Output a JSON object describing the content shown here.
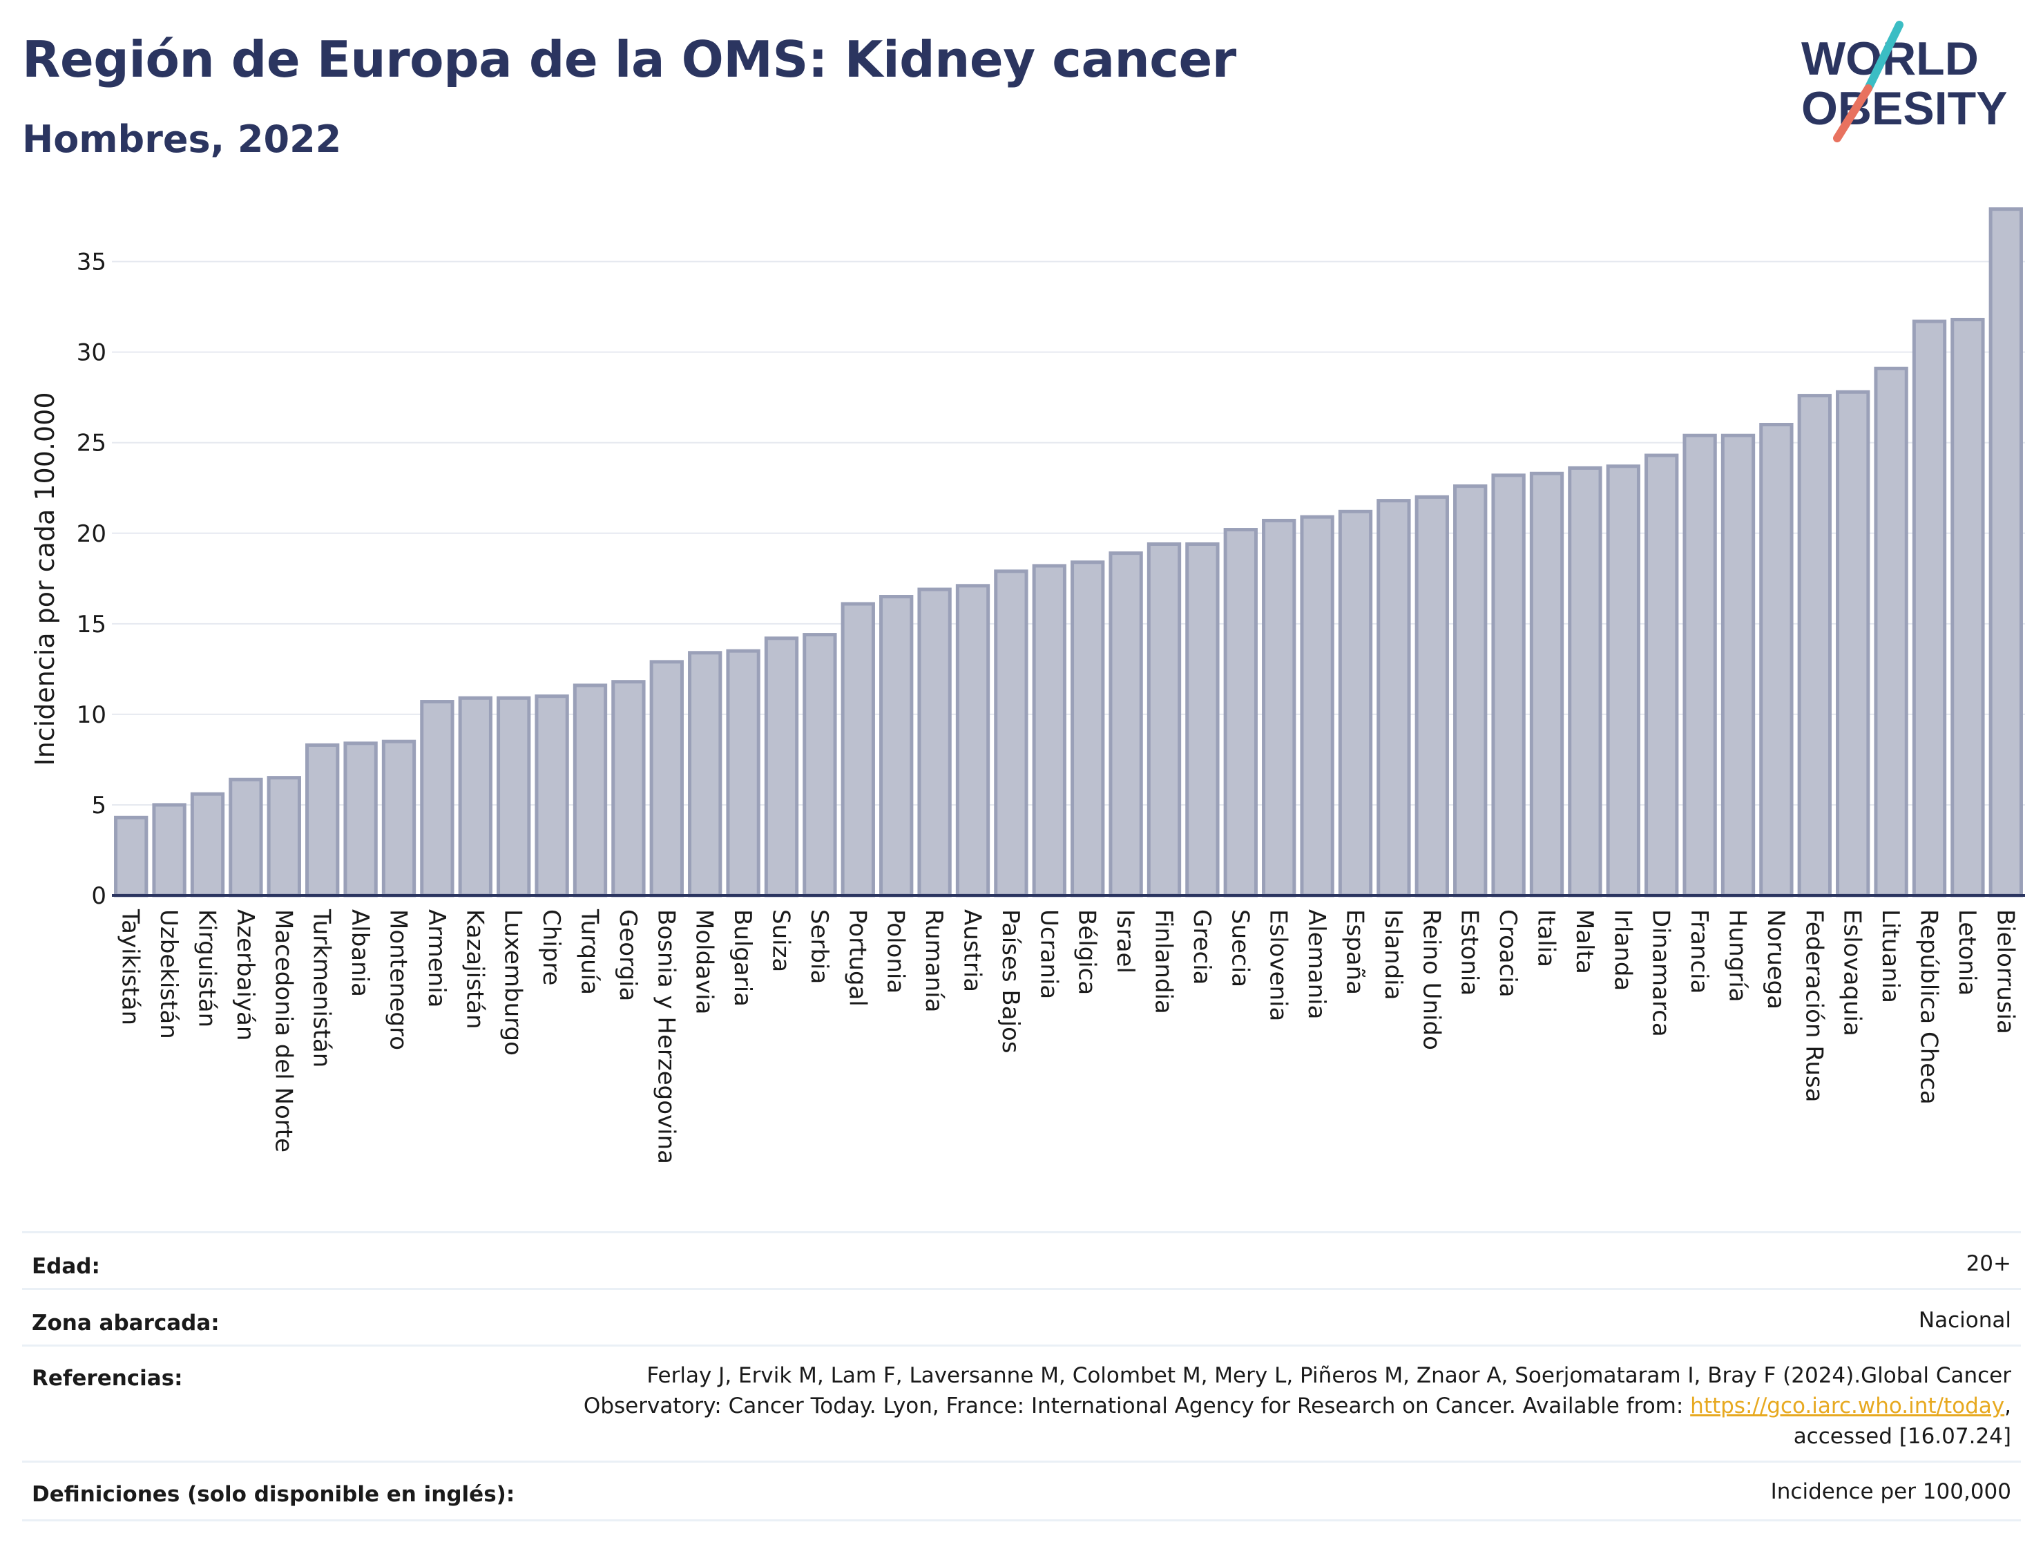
{
  "header": {
    "title": "Región de Europa de la OMS: Kidney cancer",
    "subtitle": "Hombres, 2022",
    "logo_line1": "WORLD",
    "logo_line2": "OBESITY"
  },
  "colors": {
    "bar_fill": "#bcc0cf",
    "bar_stroke": "#9aa0b8",
    "title": "#2b3560",
    "grid": "#e6e9f0",
    "logo_teal": "#3bbdc4",
    "logo_coral": "#e8725f",
    "link": "#e7a920"
  },
  "chart_data": {
    "type": "bar",
    "ylabel": "Incidencia por cada 100.000",
    "xlabel": "",
    "ylim": [
      0,
      38
    ],
    "yticks": [
      0,
      5,
      10,
      15,
      20,
      25,
      30,
      35
    ],
    "grid": true,
    "categories": [
      "Tayikistán",
      "Uzbekistán",
      "Kirguistán",
      "Azerbaiyán",
      "Macedonia del Norte",
      "Turkmenistán",
      "Albania",
      "Montenegro",
      "Armenia",
      "Kazajistán",
      "Luxemburgo",
      "Chipre",
      "Turquía",
      "Georgia",
      "Bosnia y Herzegovina",
      "Moldavia",
      "Bulgaria",
      "Suiza",
      "Serbia",
      "Portugal",
      "Polonia",
      "Rumanía",
      "Austria",
      "Países Bajos",
      "Ucrania",
      "Bélgica",
      "Israel",
      "Finlandia",
      "Grecia",
      "Suecia",
      "Eslovenia",
      "Alemania",
      "España",
      "Islandia",
      "Reino Unido",
      "Estonia",
      "Croacia",
      "Italia",
      "Malta",
      "Irlanda",
      "Dinamarca",
      "Francia",
      "Hungría",
      "Noruega",
      "Federación Rusa",
      "Eslovaquia",
      "Lituania",
      "República Checa",
      "Letonia",
      "Bielorrusia"
    ],
    "values": [
      4.3,
      5.0,
      5.6,
      6.4,
      6.5,
      8.3,
      8.4,
      8.5,
      10.7,
      10.9,
      10.9,
      11.0,
      11.6,
      11.8,
      12.9,
      13.4,
      13.5,
      14.2,
      14.4,
      16.1,
      16.5,
      16.9,
      17.1,
      17.9,
      18.2,
      18.4,
      18.9,
      19.4,
      19.4,
      20.2,
      20.7,
      20.9,
      21.2,
      21.8,
      22.0,
      22.6,
      23.2,
      23.3,
      23.6,
      23.7,
      24.3,
      25.4,
      25.4,
      26.0,
      27.6,
      27.8,
      29.1,
      31.7,
      31.8,
      37.9
    ]
  },
  "meta": {
    "age_label": "Edad:",
    "age_value": "20+",
    "area_label": "Zona abarcada:",
    "area_value": "Nacional",
    "refs_label": "Referencias:",
    "refs_line1": "Ferlay J, Ervik M, Lam F, Laversanne M, Colombet M, Mery L, Piñeros M, Znaor A, Soerjomataram I, Bray F (2024).Global Cancer",
    "refs_line2_pre": "Observatory: Cancer Today. Lyon, France: International Agency for Research on Cancer. Available from: ",
    "refs_link": "https://gco.iarc.who.int/today",
    "refs_line2_post": ",",
    "refs_line3": "accessed [16.07.24]",
    "defs_label": "Definiciones (solo disponible en inglés):",
    "defs_value": "Incidence per 100,000"
  }
}
